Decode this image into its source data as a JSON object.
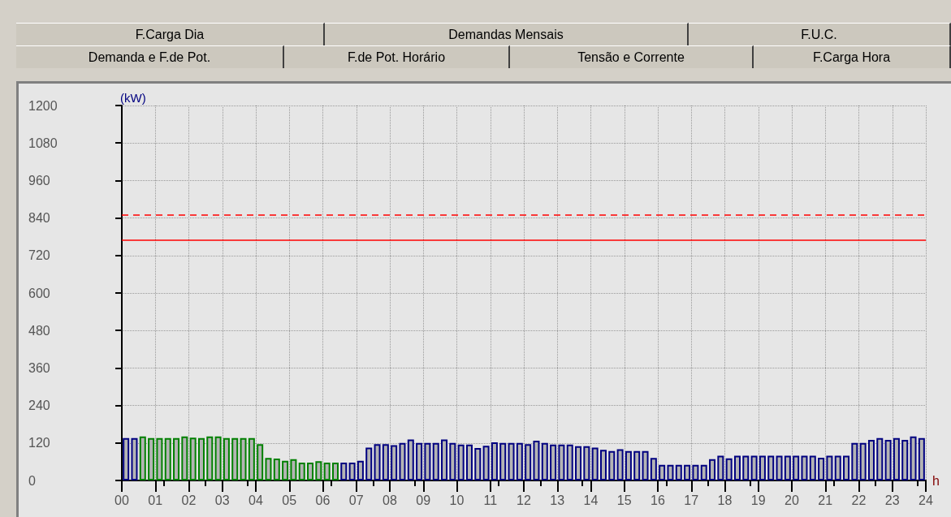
{
  "chart_data": {
    "type": "bar",
    "xlabel": "h",
    "ylabel": "(kW)",
    "annotations": [
      "F.Carga Dia",
      "Demandas Mensais",
      "F.U.C.",
      "Demanda e F.de Pot.",
      "F.de Pot. Horário",
      "Tensão e Corrente",
      "F.Carga Hora"
    ],
    "x": [
      0.125,
      0.375,
      0.625,
      0.875,
      1.125,
      1.375,
      1.625,
      1.875,
      2.125,
      2.375,
      2.625,
      2.875,
      3.125,
      3.375,
      3.625,
      3.875,
      4.125,
      4.375,
      4.625,
      4.875,
      5.125,
      5.375,
      5.625,
      5.875,
      6.125,
      6.375,
      6.625,
      6.875,
      7.125,
      7.375,
      7.625,
      7.875,
      8.125,
      8.375,
      8.625,
      8.875,
      9.125,
      9.375,
      9.625,
      9.875,
      10.125,
      10.375,
      10.625,
      10.875,
      11.125,
      11.375,
      11.625,
      11.875,
      12.125,
      12.375,
      12.625,
      12.875,
      13.125,
      13.375,
      13.625,
      13.875,
      14.125,
      14.375,
      14.625,
      14.875,
      15.125,
      15.375,
      15.625,
      15.875,
      16.125,
      16.375,
      16.625,
      16.875,
      17.125,
      17.375,
      17.625,
      17.875,
      18.125,
      18.375,
      18.625,
      18.875,
      19.125,
      19.375,
      19.625,
      19.875,
      20.125,
      20.375,
      20.625,
      20.875,
      21.125,
      21.375,
      21.625,
      21.875,
      22.125,
      22.375,
      22.625,
      22.875,
      23.125,
      23.375,
      23.625,
      23.875
    ],
    "values": [
      136,
      136,
      141,
      136,
      136,
      136,
      136,
      141,
      137,
      136,
      141,
      141,
      136,
      136,
      136,
      136,
      116,
      72,
      70,
      63,
      68,
      57,
      57,
      62,
      57,
      57,
      57,
      57,
      63,
      105,
      116,
      116,
      113,
      120,
      131,
      120,
      120,
      120,
      131,
      120,
      115,
      115,
      104,
      111,
      122,
      120,
      120,
      120,
      116,
      127,
      120,
      115,
      115,
      115,
      110,
      110,
      105,
      98,
      94,
      100,
      94,
      94,
      94,
      72,
      50,
      50,
      50,
      50,
      50,
      50,
      68,
      79,
      71,
      79,
      79,
      79,
      79,
      79,
      79,
      79,
      79,
      79,
      79,
      73,
      79,
      79,
      79,
      120,
      120,
      130,
      136,
      130,
      136,
      130,
      141,
      136
    ],
    "colors": [
      "#000080",
      "#000080",
      "#008000",
      "#008000",
      "#008000",
      "#008000",
      "#008000",
      "#008000",
      "#008000",
      "#008000",
      "#008000",
      "#008000",
      "#008000",
      "#008000",
      "#008000",
      "#008000",
      "#008000",
      "#008000",
      "#008000",
      "#008000",
      "#008000",
      "#008000",
      "#008000",
      "#008000",
      "#008000",
      "#008000",
      "#000080",
      "#000080",
      "#000080",
      "#000080",
      "#000080",
      "#000080",
      "#000080",
      "#000080",
      "#000080",
      "#000080",
      "#000080",
      "#000080",
      "#000080",
      "#000080",
      "#000080",
      "#000080",
      "#000080",
      "#000080",
      "#000080",
      "#000080",
      "#000080",
      "#000080",
      "#000080",
      "#000080",
      "#000080",
      "#000080",
      "#000080",
      "#000080",
      "#000080",
      "#000080",
      "#000080",
      "#000080",
      "#000080",
      "#000080",
      "#000080",
      "#000080",
      "#000080",
      "#000080",
      "#000080",
      "#000080",
      "#000080",
      "#000080",
      "#000080",
      "#000080",
      "#000080",
      "#000080",
      "#000080",
      "#000080",
      "#000080",
      "#000080",
      "#000080",
      "#000080",
      "#000080",
      "#000080",
      "#000080",
      "#000080",
      "#000080",
      "#000080",
      "#000080",
      "#000080",
      "#000080",
      "#000080",
      "#000080",
      "#000080",
      "#000080",
      "#000080",
      "#000080",
      "#000080",
      "#000080",
      "#000080"
    ],
    "xlim": [
      0,
      24
    ],
    "xticks": [
      {
        "value": 0,
        "label": "00"
      },
      {
        "value": 1,
        "label": "01"
      },
      {
        "value": 2,
        "label": "02"
      },
      {
        "value": 3,
        "label": "03"
      },
      {
        "value": 4,
        "label": "04"
      },
      {
        "value": 5,
        "label": "05"
      },
      {
        "value": 6,
        "label": "06"
      },
      {
        "value": 7,
        "label": "07"
      },
      {
        "value": 8,
        "label": "08"
      },
      {
        "value": 9,
        "label": "09"
      },
      10,
      11,
      12,
      13,
      14,
      15,
      16,
      17,
      18,
      19,
      20,
      21,
      22,
      23,
      24
    ],
    "ylim": [
      0,
      1200
    ],
    "yticks": [
      0,
      120,
      240,
      360,
      480,
      600,
      720,
      840,
      960,
      1080,
      1200
    ],
    "ref_lines": [
      {
        "axis": "y",
        "value": 850,
        "color": "#ff0000",
        "line_style": "dashed"
      },
      {
        "axis": "y",
        "value": 770,
        "color": "#ff0000",
        "line_style": "solid"
      }
    ],
    "grid": true
  }
}
